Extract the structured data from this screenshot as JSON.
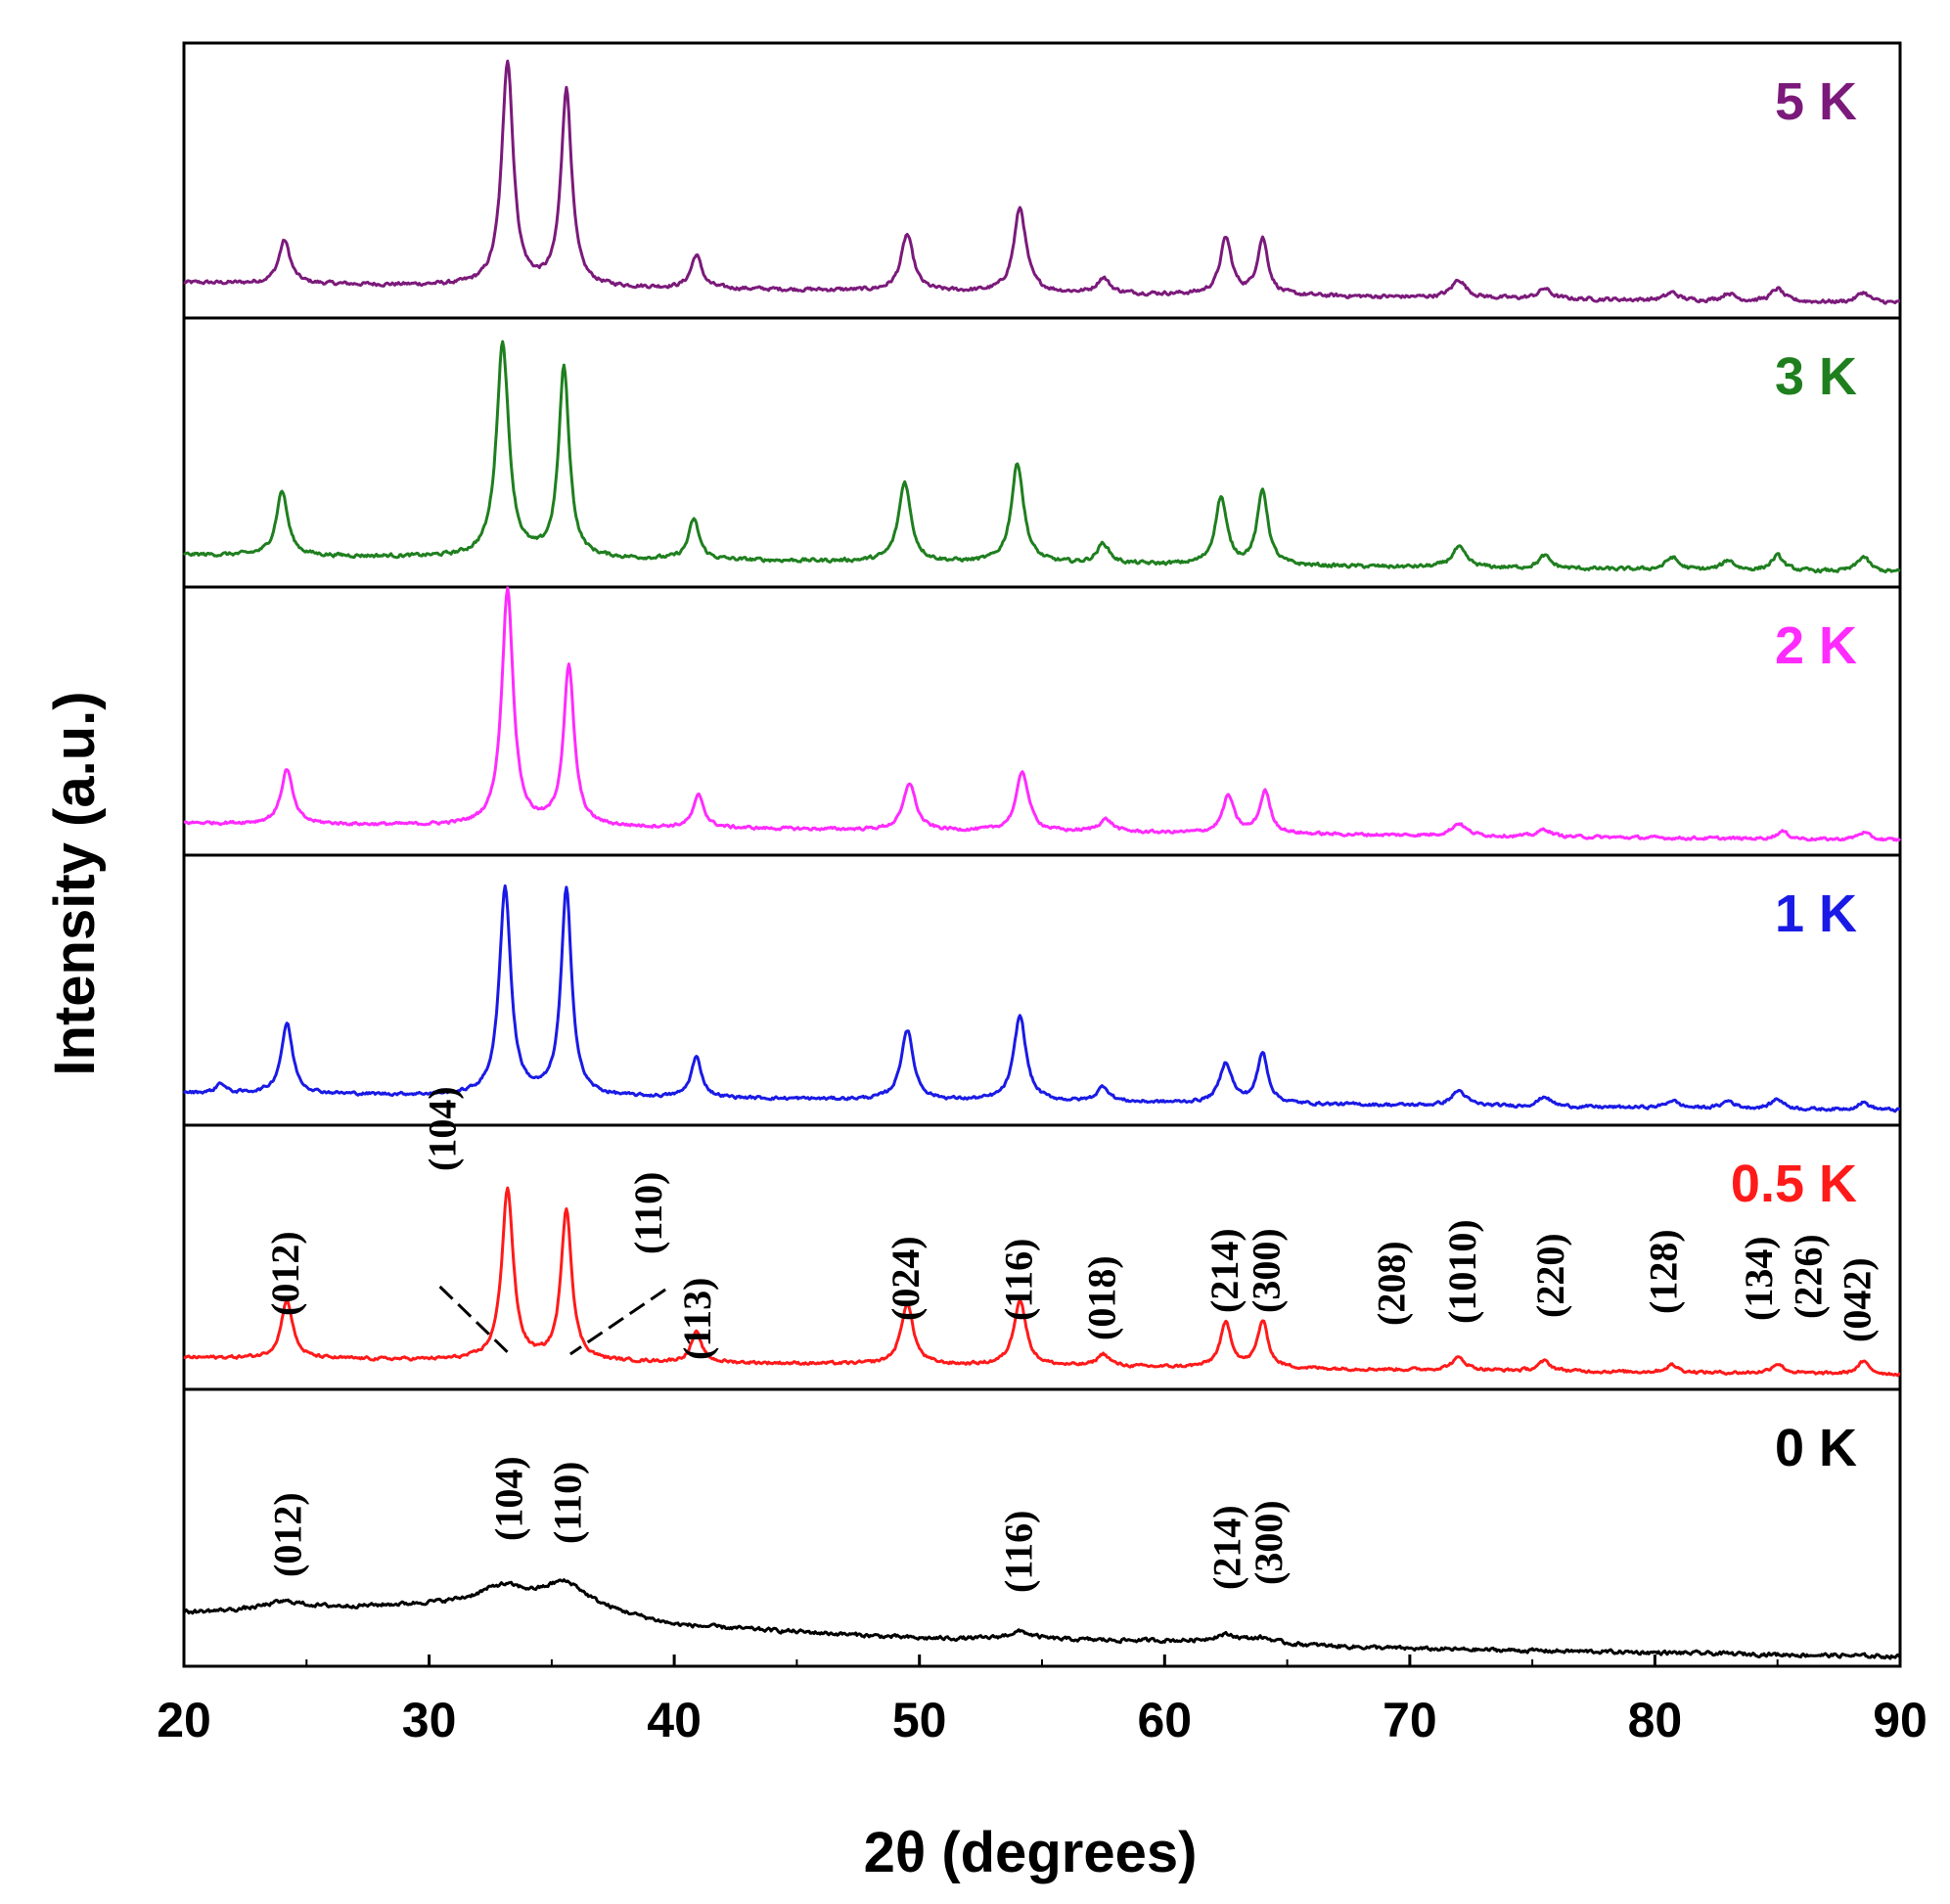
{
  "chart_data": {
    "type": "line",
    "title": "",
    "xlabel": "2θ (degrees)",
    "ylabel": "Intensity (a.u.)",
    "xlim": [
      20,
      90
    ],
    "xticks": [
      "20",
      "30",
      "40",
      "50",
      "60",
      "70",
      "80",
      "90"
    ],
    "grid": false,
    "layout": "stacked panels, top to bottom: 5 K, 3 K, 2 K, 1 K, 0.5 K, 0 K",
    "series": [
      {
        "name": "5 K",
        "color": "#7b1a7b",
        "baseline": [
          [
            20,
            0.1
          ],
          [
            90,
            0.02
          ]
        ],
        "noise": 0.012,
        "peaks": [
          [
            24.1,
            0.17,
            0.28
          ],
          [
            33.2,
            0.88,
            0.28
          ],
          [
            35.6,
            0.77,
            0.26
          ],
          [
            40.9,
            0.13,
            0.26
          ],
          [
            49.5,
            0.22,
            0.3
          ],
          [
            54.1,
            0.33,
            0.3
          ],
          [
            57.5,
            0.06,
            0.3
          ],
          [
            62.5,
            0.22,
            0.28
          ],
          [
            64.0,
            0.22,
            0.26
          ],
          [
            72.0,
            0.07,
            0.35
          ],
          [
            75.5,
            0.04,
            0.3
          ],
          [
            80.7,
            0.03,
            0.3
          ],
          [
            83.0,
            0.03,
            0.3
          ],
          [
            85.0,
            0.05,
            0.3
          ],
          [
            88.5,
            0.04,
            0.3
          ]
        ]
      },
      {
        "name": "3 K",
        "color": "#1f7f1f",
        "baseline": [
          [
            20,
            0.09
          ],
          [
            90,
            0.02
          ]
        ],
        "noise": 0.012,
        "peaks": [
          [
            24.0,
            0.26,
            0.28
          ],
          [
            33.0,
            0.86,
            0.3
          ],
          [
            35.5,
            0.76,
            0.26
          ],
          [
            40.8,
            0.16,
            0.26
          ],
          [
            49.4,
            0.32,
            0.3
          ],
          [
            54.0,
            0.4,
            0.3
          ],
          [
            57.5,
            0.08,
            0.3
          ],
          [
            62.3,
            0.27,
            0.28
          ],
          [
            64.0,
            0.3,
            0.26
          ],
          [
            72.0,
            0.08,
            0.35
          ],
          [
            75.5,
            0.05,
            0.3
          ],
          [
            80.7,
            0.05,
            0.3
          ],
          [
            83.0,
            0.04,
            0.3
          ],
          [
            85.0,
            0.06,
            0.3
          ],
          [
            88.5,
            0.06,
            0.3
          ]
        ]
      },
      {
        "name": "2 K",
        "color": "#ff2bff",
        "baseline": [
          [
            20,
            0.09
          ],
          [
            90,
            0.02
          ]
        ],
        "noise": 0.01,
        "peaks": [
          [
            24.2,
            0.22,
            0.28
          ],
          [
            33.2,
            0.95,
            0.28
          ],
          [
            35.7,
            0.64,
            0.26
          ],
          [
            41.0,
            0.13,
            0.26
          ],
          [
            49.6,
            0.19,
            0.3
          ],
          [
            54.2,
            0.24,
            0.3
          ],
          [
            57.6,
            0.05,
            0.35
          ],
          [
            62.6,
            0.15,
            0.28
          ],
          [
            64.1,
            0.17,
            0.26
          ],
          [
            72.0,
            0.05,
            0.35
          ],
          [
            75.5,
            0.03,
            0.3
          ],
          [
            85.2,
            0.03,
            0.3
          ],
          [
            88.5,
            0.03,
            0.3
          ]
        ]
      },
      {
        "name": "1 K",
        "color": "#1a1ae6",
        "baseline": [
          [
            20,
            0.09
          ],
          [
            90,
            0.02
          ]
        ],
        "noise": 0.01,
        "peaks": [
          [
            21.5,
            0.04,
            0.2
          ],
          [
            24.2,
            0.28,
            0.28
          ],
          [
            33.1,
            0.83,
            0.28
          ],
          [
            35.6,
            0.82,
            0.26
          ],
          [
            40.9,
            0.16,
            0.26
          ],
          [
            49.5,
            0.28,
            0.3
          ],
          [
            54.1,
            0.34,
            0.3
          ],
          [
            57.5,
            0.06,
            0.3
          ],
          [
            62.5,
            0.16,
            0.3
          ],
          [
            64.0,
            0.2,
            0.26
          ],
          [
            72.0,
            0.06,
            0.35
          ],
          [
            75.5,
            0.04,
            0.3
          ],
          [
            80.7,
            0.03,
            0.3
          ],
          [
            83.0,
            0.03,
            0.3
          ],
          [
            85.0,
            0.04,
            0.3
          ],
          [
            88.5,
            0.03,
            0.3
          ]
        ]
      },
      {
        "name": "0.5 K",
        "color": "#ff1a1a",
        "baseline": [
          [
            20,
            0.09
          ],
          [
            90,
            0.02
          ]
        ],
        "noise": 0.01,
        "peaks": [
          [
            24.2,
            0.24,
            0.28
          ],
          [
            33.2,
            0.7,
            0.28
          ],
          [
            35.6,
            0.62,
            0.26
          ],
          [
            40.9,
            0.12,
            0.26
          ],
          [
            49.5,
            0.25,
            0.3
          ],
          [
            54.1,
            0.27,
            0.3
          ],
          [
            57.5,
            0.05,
            0.3
          ],
          [
            62.5,
            0.18,
            0.28
          ],
          [
            64.0,
            0.19,
            0.26
          ],
          [
            72.0,
            0.05,
            0.35
          ],
          [
            75.5,
            0.04,
            0.3
          ],
          [
            80.7,
            0.03,
            0.3
          ],
          [
            85.0,
            0.04,
            0.3
          ],
          [
            88.5,
            0.05,
            0.3
          ]
        ]
      },
      {
        "name": "0 K",
        "color": "#000000",
        "baseline": [
          [
            20,
            0.17
          ],
          [
            30,
            0.2
          ],
          [
            36,
            0.2
          ],
          [
            40,
            0.12
          ],
          [
            50,
            0.07
          ],
          [
            60,
            0.06
          ],
          [
            70,
            0.03
          ],
          [
            90,
            0.0
          ]
        ],
        "noise": 0.012,
        "peaks": [
          [
            24.1,
            0.03,
            1.0
          ],
          [
            33.0,
            0.07,
            1.2
          ],
          [
            35.5,
            0.08,
            1.0
          ],
          [
            54.1,
            0.03,
            0.6
          ],
          [
            62.5,
            0.03,
            0.7
          ],
          [
            64.0,
            0.02,
            0.6
          ]
        ]
      }
    ],
    "annotations": [
      {
        "series": "0.5 K",
        "labels": [
          {
            "hkl": "(012)",
            "x": 24.2
          },
          {
            "hkl": "(104)",
            "x": 30.6,
            "pointer_to": 33.2
          },
          {
            "hkl": "(110)",
            "x": 39.0,
            "pointer_to": 35.6
          },
          {
            "hkl": "(113)",
            "x": 41.0
          },
          {
            "hkl": "(024)",
            "x": 49.5
          },
          {
            "hkl": "(116)",
            "x": 54.1
          },
          {
            "hkl": "(018)",
            "x": 57.5
          },
          {
            "hkl": "(214)",
            "x": 62.5
          },
          {
            "hkl": "(300)",
            "x": 64.2
          },
          {
            "hkl": "(208)",
            "x": 69.3
          },
          {
            "hkl": "(1010)",
            "x": 72.2
          },
          {
            "hkl": "(220)",
            "x": 75.8
          },
          {
            "hkl": "(128)",
            "x": 80.4
          },
          {
            "hkl": "(134)",
            "x": 84.3
          },
          {
            "hkl": "(226)",
            "x": 86.3
          },
          {
            "hkl": "(042)",
            "x": 88.3
          }
        ]
      },
      {
        "series": "0 K",
        "labels": [
          {
            "hkl": "(012)",
            "x": 24.3
          },
          {
            "hkl": "(104)",
            "x": 33.3
          },
          {
            "hkl": "(110)",
            "x": 35.7
          },
          {
            "hkl": "(116)",
            "x": 54.1
          },
          {
            "hkl": "(214)",
            "x": 62.6
          },
          {
            "hkl": "(300)",
            "x": 64.3
          }
        ]
      }
    ]
  }
}
